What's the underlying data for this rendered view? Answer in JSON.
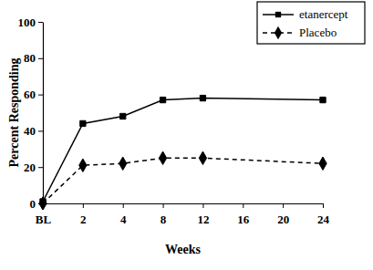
{
  "chart_data": {
    "type": "line",
    "x_label": "Weeks",
    "y_label": "Percent Responding",
    "categories": [
      "BL",
      "2",
      "4",
      "8",
      "12",
      "16",
      "20",
      "24"
    ],
    "ylim": [
      0,
      100
    ],
    "yticks": [
      0,
      20,
      40,
      60,
      80,
      100
    ],
    "legend": "top-right",
    "series": [
      {
        "name": "etanercept",
        "color": "#000000",
        "marker": "square",
        "line_style": "solid",
        "x": [
          "BL",
          "2",
          "4",
          "8",
          "12",
          "24"
        ],
        "values": [
          1,
          44,
          48,
          57,
          58,
          57
        ]
      },
      {
        "name": "Placebo",
        "color": "#000000",
        "marker": "diamond",
        "line_style": "dashed",
        "x": [
          "BL",
          "2",
          "4",
          "8",
          "12",
          "24"
        ],
        "values": [
          0,
          21,
          22,
          25,
          25,
          22
        ]
      }
    ]
  }
}
